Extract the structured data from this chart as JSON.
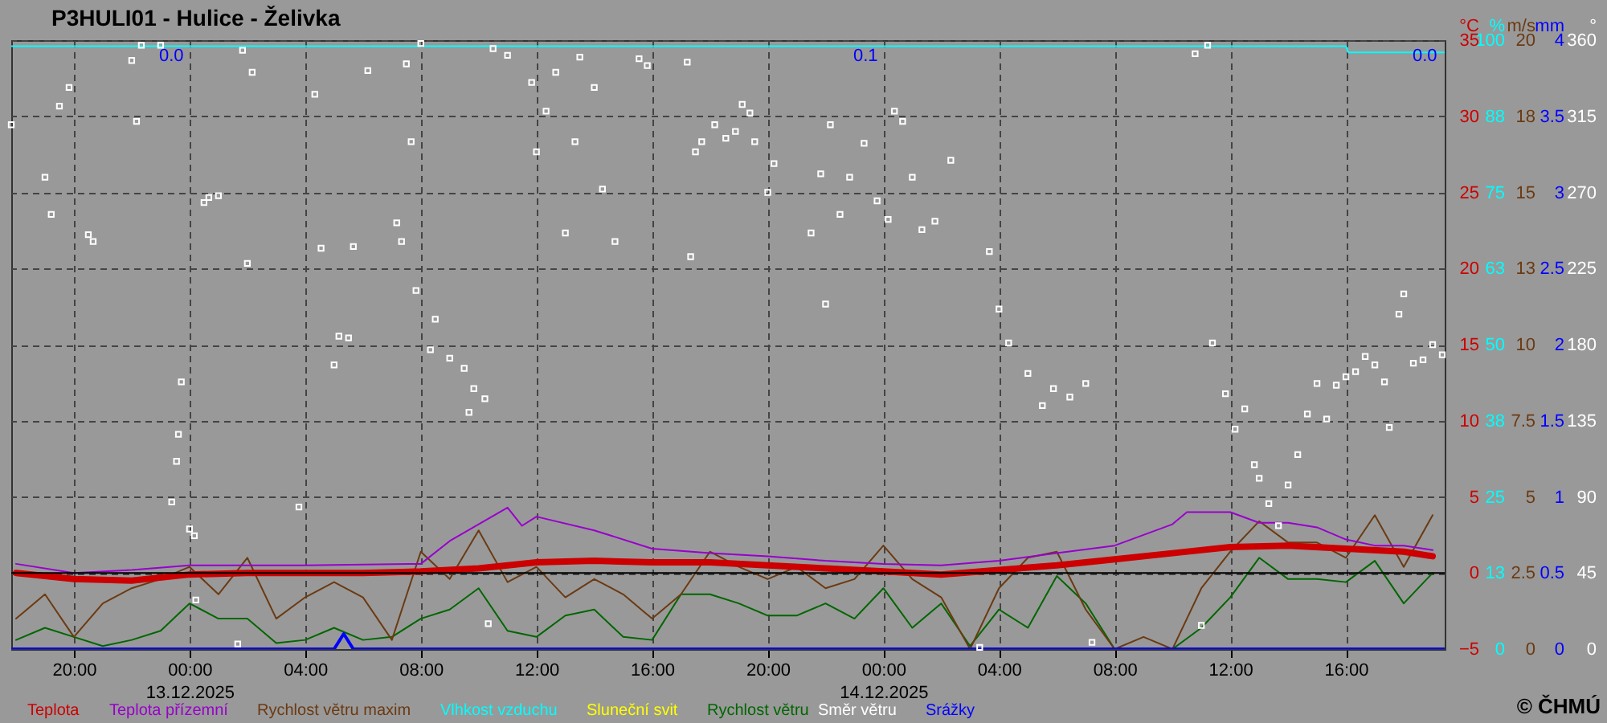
{
  "chart_data": [
    {
      "type": "line",
      "title": "P3HULI01 - Hulice - Želivka",
      "x": [
        "2025-12-12T18:00",
        "2025-12-12T19:00",
        "2025-12-12T20:00",
        "2025-12-12T21:00",
        "2025-12-12T22:00",
        "2025-12-12T23:00",
        "2025-12-13T00:00",
        "2025-12-13T01:00",
        "2025-12-13T02:00",
        "2025-12-13T03:00",
        "2025-12-13T04:00",
        "2025-12-13T05:00",
        "2025-12-13T06:00",
        "2025-12-13T07:00",
        "2025-12-13T08:00",
        "2025-12-13T09:00",
        "2025-12-13T10:00",
        "2025-12-13T11:00",
        "2025-12-13T12:00",
        "2025-12-13T13:00",
        "2025-12-13T14:00",
        "2025-12-13T15:00",
        "2025-12-13T16:00",
        "2025-12-13T17:00",
        "2025-12-13T18:00",
        "2025-12-13T19:00",
        "2025-12-13T20:00",
        "2025-12-13T21:00",
        "2025-12-13T22:00",
        "2025-12-13T23:00",
        "2025-12-14T00:00",
        "2025-12-14T01:00",
        "2025-12-14T02:00",
        "2025-12-14T03:00",
        "2025-12-14T04:00",
        "2025-12-14T05:00",
        "2025-12-14T06:00",
        "2025-12-14T07:00",
        "2025-12-14T08:00",
        "2025-12-14T09:00",
        "2025-12-14T10:00",
        "2025-12-14T11:00",
        "2025-12-14T12:00",
        "2025-12-14T13:00",
        "2025-12-14T14:00",
        "2025-12-14T15:00",
        "2025-12-14T16:00",
        "2025-12-14T17:00",
        "2025-12-14T18:00",
        "2025-12-14T19:00"
      ],
      "xlim": [
        "2025-12-12T17:50",
        "2025-12-14T19:25"
      ],
      "xticks": [
        {
          "value": "2025-12-12T20:00",
          "label": "20:00"
        },
        {
          "value": "2025-12-13T00:00",
          "label": "00:00\n13.12.2025"
        },
        {
          "value": "2025-12-13T04:00",
          "label": "04:00"
        },
        {
          "value": "2025-12-13T08:00",
          "label": "08:00"
        },
        {
          "value": "2025-12-13T12:00",
          "label": "12:00"
        },
        {
          "value": "2025-12-13T16:00",
          "label": "16:00"
        },
        {
          "value": "2025-12-13T20:00",
          "label": "20:00"
        },
        {
          "value": "2025-12-14T00:00",
          "label": "00:00\n14.12.2025"
        },
        {
          "value": "2025-12-14T04:00",
          "label": "04:00"
        },
        {
          "value": "2025-12-14T08:00",
          "label": "08:00"
        },
        {
          "value": "2025-12-14T12:00",
          "label": "12:00"
        },
        {
          "value": "2025-12-14T16:00",
          "label": "16:00"
        }
      ],
      "ylabel": "°C",
      "ylim": [
        -5,
        35
      ],
      "yticks": [
        -5,
        0,
        5,
        10,
        15,
        20,
        25,
        30,
        35
      ],
      "y2label": "%",
      "y2lim": [
        0,
        100
      ],
      "y2ticks": [
        0,
        {
          "value": 12.5,
          "label": "13"
        },
        25,
        {
          "value": 37.5,
          "label": "38"
        },
        50,
        {
          "value": 62.5,
          "label": "63"
        },
        75,
        {
          "value": 87.5,
          "label": "88"
        },
        100
      ],
      "y3label": "m/s",
      "y3lim": [
        0,
        20
      ],
      "y3ticks": [
        0,
        2.5,
        5,
        7.5,
        10,
        {
          "value": 12.5,
          "label": "13"
        },
        15,
        {
          "value": 17.5,
          "label": "18"
        },
        20
      ],
      "grid": true,
      "legend": "bottom",
      "ref_lines": [
        {
          "axis": "y",
          "value": 0,
          "color": "#000000"
        }
      ],
      "annotations": [
        "© ČHMÚ"
      ],
      "series": [
        {
          "name": "Teplota",
          "color": "#cc0000",
          "axis": "y",
          "x": [
            "2025-12-12T18:00",
            "2025-12-12T20:00",
            "2025-12-12T22:00",
            "2025-12-13T00:00",
            "2025-12-13T02:00",
            "2025-12-13T04:00",
            "2025-12-13T06:00",
            "2025-12-13T08:00",
            "2025-12-13T10:00",
            "2025-12-13T12:00",
            "2025-12-13T14:00",
            "2025-12-13T16:00",
            "2025-12-13T18:00",
            "2025-12-13T20:00",
            "2025-12-13T22:00",
            "2025-12-14T00:00",
            "2025-12-14T02:00",
            "2025-12-14T04:00",
            "2025-12-14T06:00",
            "2025-12-14T08:00",
            "2025-12-14T10:00",
            "2025-12-14T12:00",
            "2025-12-14T14:00",
            "2025-12-14T16:00",
            "2025-12-14T18:00",
            "2025-12-14T19:00"
          ],
          "values": [
            0.0,
            -0.4,
            -0.5,
            -0.1,
            0.0,
            0.0,
            0.0,
            0.1,
            0.3,
            0.7,
            0.8,
            0.7,
            0.7,
            0.5,
            0.3,
            0.1,
            -0.1,
            0.2,
            0.5,
            0.9,
            1.3,
            1.7,
            1.8,
            1.6,
            1.4,
            1.1
          ]
        },
        {
          "name": "Teplota přízemní",
          "color": "#9900cc",
          "axis": "y",
          "x": [
            "2025-12-12T18:00",
            "2025-12-12T20:00",
            "2025-12-12T22:00",
            "2025-12-13T00:00",
            "2025-12-13T04:00",
            "2025-12-13T08:00",
            "2025-12-13T09:00",
            "2025-12-13T10:00",
            "2025-12-13T11:00",
            "2025-12-13T11:30",
            "2025-12-13T12:00",
            "2025-12-13T14:00",
            "2025-12-13T16:00",
            "2025-12-13T18:00",
            "2025-12-13T20:00",
            "2025-12-13T22:00",
            "2025-12-14T00:00",
            "2025-12-14T02:00",
            "2025-12-14T04:00",
            "2025-12-14T06:00",
            "2025-12-14T08:00",
            "2025-12-14T09:00",
            "2025-12-14T10:00",
            "2025-12-14T10:30",
            "2025-12-14T12:00",
            "2025-12-14T13:00",
            "2025-12-14T14:00",
            "2025-12-14T15:00",
            "2025-12-14T16:00",
            "2025-12-14T17:00",
            "2025-12-14T18:00",
            "2025-12-14T19:00"
          ],
          "values": [
            0.6,
            0.0,
            0.2,
            0.5,
            0.5,
            0.6,
            2.1,
            3.2,
            4.3,
            3.1,
            3.7,
            2.8,
            1.6,
            1.3,
            1.1,
            0.8,
            0.6,
            0.5,
            0.8,
            1.3,
            1.8,
            2.5,
            3.2,
            4.0,
            4.0,
            3.3,
            3.3,
            3.0,
            2.2,
            1.8,
            1.8,
            1.5
          ]
        },
        {
          "name": "Rychlost větru maxim",
          "color": "#6b3a12",
          "axis": "y3",
          "values": [
            1.0,
            1.8,
            0.4,
            1.5,
            2.0,
            2.3,
            2.7,
            1.8,
            3.0,
            1.0,
            1.7,
            2.2,
            1.7,
            0.3,
            3.2,
            2.3,
            3.9,
            2.2,
            2.7,
            1.7,
            2.3,
            1.8,
            1.0,
            1.8,
            3.2,
            2.7,
            2.3,
            2.7,
            2.0,
            2.3,
            3.4,
            2.3,
            1.7,
            0,
            2.0,
            3.0,
            3.2,
            1.3,
            0,
            0.4,
            0,
            2.0,
            3.2,
            4.2,
            3.5,
            3.5,
            3.0,
            4.4,
            2.7,
            4.4
          ]
        },
        {
          "name": "Vlhkost vzduchu",
          "color": "#00ffff",
          "axis": "y2",
          "x": [
            "2025-12-12T17:50",
            "2025-12-13T12:00",
            "2025-12-14T16:00",
            "2025-12-14T16:05",
            "2025-12-14T19:25"
          ],
          "values": [
            99,
            99,
            99,
            98,
            98
          ]
        },
        {
          "name": "Sluneční svit",
          "color": "#ffff00",
          "axis": "y3",
          "values": [
            null,
            null,
            null,
            null,
            null,
            null,
            null,
            null,
            null,
            null,
            null,
            null,
            null,
            null,
            null,
            null,
            null,
            null,
            null,
            null,
            null,
            null,
            null,
            null,
            null,
            null,
            null,
            null,
            null,
            null,
            null,
            null,
            null,
            null,
            null,
            null,
            null,
            null,
            null,
            null,
            null,
            null,
            null,
            null,
            null,
            null,
            null,
            null,
            null,
            null
          ]
        },
        {
          "name": "Rychlost větru",
          "color": "#006600",
          "axis": "y3",
          "values": [
            0.3,
            0.7,
            0.4,
            0.1,
            0.3,
            0.6,
            1.5,
            1.0,
            1.0,
            0.2,
            0.3,
            0.7,
            0.3,
            0.4,
            1.0,
            1.3,
            2.0,
            0.6,
            0.4,
            1.1,
            1.3,
            0.4,
            0.3,
            1.8,
            1.8,
            1.5,
            1.1,
            1.1,
            1.5,
            1.0,
            2.0,
            0.7,
            1.5,
            0.1,
            1.3,
            0.7,
            2.4,
            1.5,
            0,
            0,
            0,
            0.7,
            1.7,
            3.0,
            2.3,
            2.3,
            2.2,
            2.9,
            1.5,
            2.5
          ]
        }
      ]
    },
    {
      "type": "line",
      "xlim": [
        "2025-12-12T17:50",
        "2025-12-14T19:25"
      ],
      "tick_labels": "y",
      "ylabel": "mm",
      "ylim": [
        0,
        4
      ],
      "yticks": [
        0,
        0.5,
        1,
        1.5,
        2,
        2.5,
        3,
        3.5,
        4
      ],
      "y2label": "°",
      "y2lim": [
        0,
        360
      ],
      "y2ticks": [
        0,
        45,
        90,
        135,
        180,
        225,
        270,
        315,
        360
      ],
      "legend": "bottom",
      "annotations": [
        "0.0",
        "0.1",
        "0.0"
      ],
      "series": [
        {
          "name": "Směr větru",
          "type": "scatter",
          "marker": "square",
          "color": "#ffffff",
          "axis": "y2",
          "x": [
            "2025-12-12T17:50",
            "2025-12-12T19:00",
            "2025-12-12T19:13",
            "2025-12-12T19:30",
            "2025-12-12T19:50",
            "2025-12-12T20:30",
            "2025-12-12T20:40",
            "2025-12-12T22:00",
            "2025-12-12T22:10",
            "2025-12-12T22:20",
            "2025-12-12T23:00",
            "2025-12-12T23:23",
            "2025-12-12T23:33",
            "2025-12-12T23:37",
            "2025-12-12T23:43",
            "2025-12-13T00:00",
            "2025-12-13T00:10",
            "2025-12-13T00:13",
            "2025-12-13T00:30",
            "2025-12-13T00:40",
            "2025-12-13T01:00",
            "2025-12-13T01:40",
            "2025-12-13T01:50",
            "2025-12-13T02:00",
            "2025-12-13T02:10",
            "2025-12-13T03:47",
            "2025-12-13T04:20",
            "2025-12-13T04:33",
            "2025-12-13T05:00",
            "2025-12-13T05:10",
            "2025-12-13T05:30",
            "2025-12-13T05:40",
            "2025-12-13T06:10",
            "2025-12-13T07:10",
            "2025-12-13T07:20",
            "2025-12-13T07:30",
            "2025-12-13T07:40",
            "2025-12-13T07:50",
            "2025-12-13T08:00",
            "2025-12-13T08:20",
            "2025-12-13T08:30",
            "2025-12-13T09:00",
            "2025-12-13T09:30",
            "2025-12-13T09:40",
            "2025-12-13T09:50",
            "2025-12-13T10:13",
            "2025-12-13T10:20",
            "2025-12-13T10:30",
            "2025-12-13T11:00",
            "2025-12-13T11:50",
            "2025-12-13T12:00",
            "2025-12-13T12:20",
            "2025-12-13T12:40",
            "2025-12-13T13:00",
            "2025-12-13T13:20",
            "2025-12-13T13:30",
            "2025-12-13T14:00",
            "2025-12-13T14:17",
            "2025-12-13T14:43",
            "2025-12-13T15:33",
            "2025-12-13T15:50",
            "2025-12-13T17:13",
            "2025-12-13T17:20",
            "2025-12-13T17:30",
            "2025-12-13T17:43",
            "2025-12-13T18:10",
            "2025-12-13T18:33",
            "2025-12-13T18:53",
            "2025-12-13T19:07",
            "2025-12-13T19:23",
            "2025-12-13T19:33",
            "2025-12-13T20:00",
            "2025-12-13T20:13",
            "2025-12-13T21:30",
            "2025-12-13T21:50",
            "2025-12-13T22:00",
            "2025-12-13T22:10",
            "2025-12-13T22:30",
            "2025-12-13T22:50",
            "2025-12-13T23:20",
            "2025-12-13T23:47",
            "2025-12-14T00:10",
            "2025-12-14T00:23",
            "2025-12-14T00:40",
            "2025-12-14T01:00",
            "2025-12-14T01:20",
            "2025-12-14T01:47",
            "2025-12-14T02:20",
            "2025-12-14T03:20",
            "2025-12-14T03:40",
            "2025-12-14T04:00",
            "2025-12-14T04:20",
            "2025-12-14T05:00",
            "2025-12-14T05:30",
            "2025-12-14T05:53",
            "2025-12-14T06:27",
            "2025-12-14T07:00",
            "2025-12-14T07:13",
            "2025-12-14T10:47",
            "2025-12-14T11:00",
            "2025-12-14T11:13",
            "2025-12-14T11:23",
            "2025-12-14T11:50",
            "2025-12-14T12:10",
            "2025-12-14T12:30",
            "2025-12-14T12:50",
            "2025-12-14T13:00",
            "2025-12-14T13:20",
            "2025-12-14T13:40",
            "2025-12-14T14:00",
            "2025-12-14T14:20",
            "2025-12-14T14:40",
            "2025-12-14T15:00",
            "2025-12-14T15:20",
            "2025-12-14T15:40",
            "2025-12-14T16:00",
            "2025-12-14T16:20",
            "2025-12-14T16:40",
            "2025-12-14T17:00",
            "2025-12-14T17:20",
            "2025-12-14T17:30",
            "2025-12-14T17:50",
            "2025-12-14T18:00",
            "2025-12-14T18:20",
            "2025-12-14T18:40",
            "2025-12-14T19:00",
            "2025-12-14T19:20"
          ],
          "values": [
            310,
            279,
            257,
            321,
            332,
            245,
            241,
            348,
            312,
            357,
            357,
            87,
            111,
            127,
            158,
            71,
            67,
            29,
            264,
            267,
            268,
            3,
            354,
            228,
            341,
            84,
            328,
            237,
            168,
            185,
            184,
            238,
            342,
            252,
            241,
            346,
            300,
            212,
            358,
            177,
            195,
            172,
            166,
            140,
            154,
            148,
            15,
            355,
            351,
            335,
            294,
            318,
            341,
            246,
            300,
            350,
            332,
            272,
            241,
            349,
            345,
            347,
            232,
            294,
            300,
            310,
            302,
            306,
            322,
            317,
            300,
            270,
            287,
            246,
            281,
            204,
            310,
            257,
            279,
            299,
            265,
            254,
            318,
            312,
            279,
            248,
            253,
            289,
            1,
            235,
            201,
            181,
            163,
            144,
            154,
            149,
            157,
            4,
            352,
            14,
            357,
            181,
            151,
            130,
            142,
            109,
            101,
            86,
            73,
            97,
            115,
            139,
            157,
            136,
            156,
            161,
            164,
            173,
            168,
            158,
            131,
            198,
            210,
            169,
            171,
            180,
            174
          ]
        },
        {
          "name": "Srážky",
          "color": "#0000ff",
          "axis": "y",
          "x": [
            "2025-12-12T17:50",
            "2025-12-13T05:00",
            "2025-12-13T05:20",
            "2025-12-13T05:40",
            "2025-12-14T19:25"
          ],
          "values": [
            0,
            0,
            0.1,
            0,
            0
          ]
        }
      ]
    }
  ]
}
